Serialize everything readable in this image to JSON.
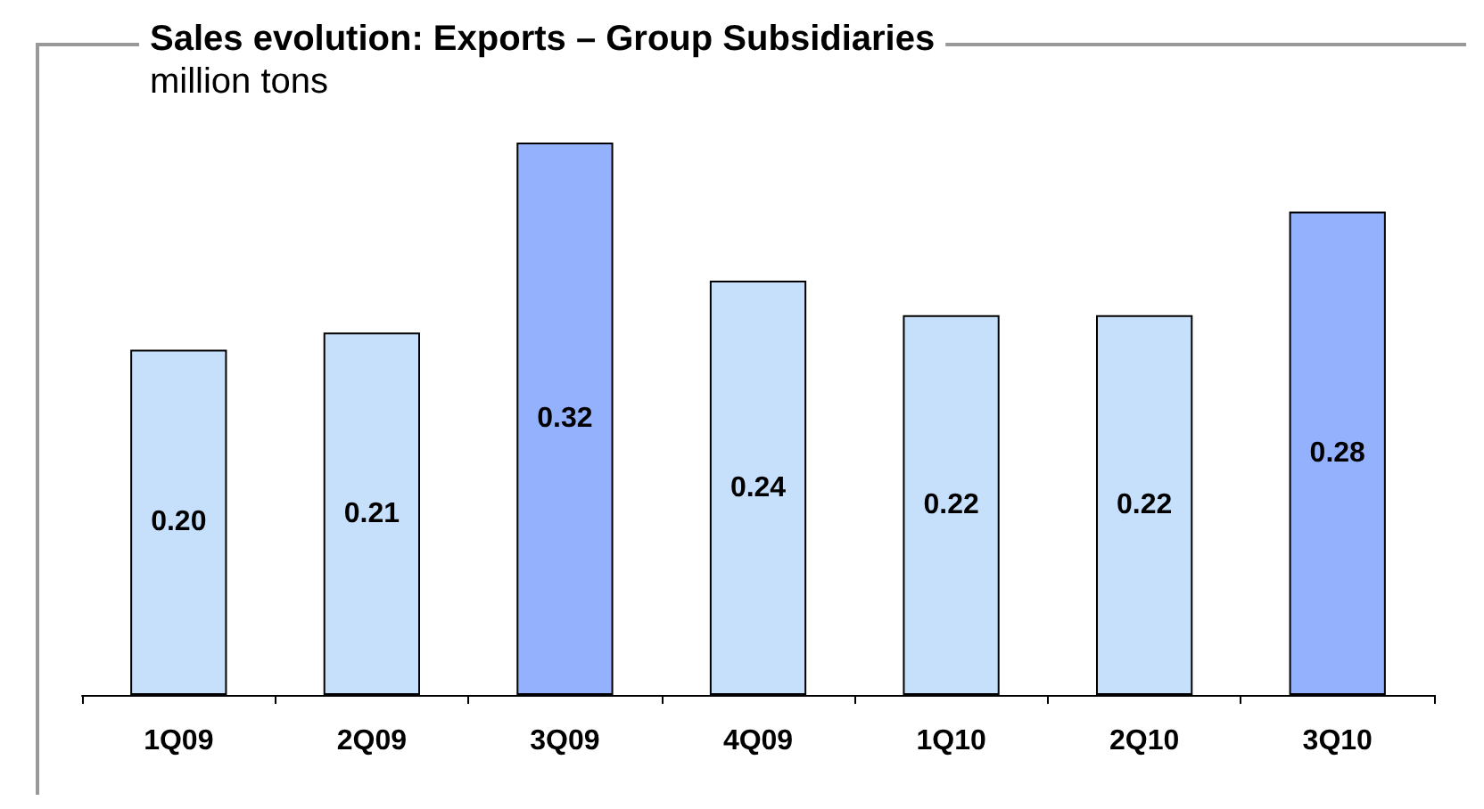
{
  "chart_data": {
    "type": "bar",
    "title": "Sales evolution: Exports – Group Subsidiaries",
    "subtitle": "million tons",
    "categories": [
      "1Q09",
      "2Q09",
      "3Q09",
      "4Q09",
      "1Q10",
      "2Q10",
      "3Q10"
    ],
    "values": [
      0.2,
      0.21,
      0.32,
      0.24,
      0.22,
      0.22,
      0.28
    ],
    "value_labels": [
      "0.20",
      "0.21",
      "0.32",
      "0.24",
      "0.22",
      "0.22",
      "0.28"
    ],
    "colors": [
      "#c6e0fb",
      "#c6e0fb",
      "#93b1fd",
      "#c6e0fb",
      "#c6e0fb",
      "#c6e0fb",
      "#93b1fd"
    ]
  }
}
